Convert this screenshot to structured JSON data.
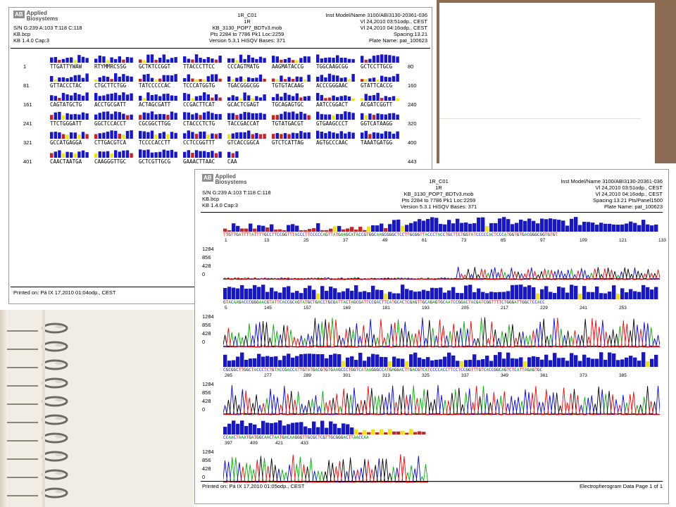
{
  "brand": {
    "logo_line1": "Applied",
    "logo_line2": "Biosystems",
    "logo_mark": "AB"
  },
  "report1": {
    "header_left": [
      "S/N G:239 A:103 T:118 C:118",
      "KB.bcp",
      "KB 1.4.0     Cap:3"
    ],
    "header_center": [
      "1R_C01",
      "1R",
      "KB_3130_POP7_BDTv3.mob",
      "Pts 2284 to 7786 Pk1 Loc:2259",
      "Version 5.3.1    HiSQV Bases: 371"
    ],
    "header_right": [
      "Inst Model/Name 3100/ABI3130-20361-036",
      "Vl 24,2010 03:51odp., CEST",
      "Vl 24,2010 04:16odp., CEST",
      "Spacing:13.21",
      "Plate Name: pat_100623"
    ],
    "rows": [
      {
        "start": "1",
        "groups": [
          "TTGATTYWAW",
          "RTYMMRCSSG",
          "GCTKTCCGGT",
          "TTACCCTTCC",
          "CCCAGTMATG",
          "AAGMATACCG",
          "TGGCAAGCGG",
          "GCTCCTTGCG"
        ],
        "end": "80"
      },
      {
        "start": "81",
        "groups": [
          "GTTACCCTAC",
          "CTGCTTCTGG",
          "TATCCCCCAC",
          "TCCCATGGTG",
          "TGACGGGCGG",
          "TGTGTACAAG",
          "ACCCGGGAAC",
          "GTATTCACCG"
        ],
        "end": "160"
      },
      {
        "start": "161",
        "groups": [
          "CAGTATGCTG",
          "ACCTGCGATT",
          "ACTAGCGATT",
          "CCGACTTCAT",
          "GCACTCGAGT",
          "TGCAGAGTGC",
          "AATCCGGACT",
          "ACGATCGGTT"
        ],
        "end": "240"
      },
      {
        "start": "241",
        "groups": [
          "TTCTGGGATT",
          "GGCTCCACCT",
          "CGCGGCTTGG",
          "CTACCCTCTG",
          "TACCGACCAT",
          "TGTATGACGT",
          "GTGAAGCCCT",
          "GGTCATAAGG"
        ],
        "end": "320"
      },
      {
        "start": "321",
        "groups": [
          "GCCATGAGGA",
          "CTTGACGTCA",
          "TCCCCACCTT",
          "CCTCCGGTTT",
          "GTCACCGGCA",
          "GTCTCATTAG",
          "AGTGCCCAAC",
          "TAAATGATGG"
        ],
        "end": "400"
      },
      {
        "start": "401",
        "groups": [
          "CAACTAATGA",
          "CAAGGGTTGC",
          "GCTCGTTGCG",
          "GAAACTTAAC",
          "CAA"
        ],
        "end": "443"
      }
    ],
    "footer": "Printed on: Pá IX 17,2010 01:04odp., CEST"
  },
  "report2": {
    "header_left": [
      "S/N G:239 A:103 T:118 C:118",
      "KB.bcp",
      "KB 1.4.0     Cap:3"
    ],
    "header_center": [
      "1R_C01",
      "1R",
      "KB_3130_POP7_BDTv3.mob",
      "Pts 2284 to 7786 Pk1 Loc:2259",
      "Version 5.3.1    HiSQV Bases: 371"
    ],
    "header_right": [
      "Inst Model/Name 3100/ABI3130-20361-036",
      "Vl 24,2010 03:51odp., CEST",
      "Vl 24,2010 04:16odp., CEST",
      "Spacing:13.21   Pts/Panel1500",
      "Plate Name: pat_100623"
    ],
    "y_ticks": [
      "1284",
      "856",
      "428",
      "0"
    ],
    "panels": [
      {
        "strip": "TTGTTGATTTTATTTTGCCTTCCGGTTTACCCTTCCCCCAGTTATGAAGCATACCGTGGCAAGCGGGCTCCTTGCGGTTACCCTACCTGCTTCTGGTATCCCCCACTCCCATGGTGTGACGGGCGGTGTGT",
        "ticks": [
          "1",
          "13",
          "25",
          "37",
          "49",
          "61",
          "73",
          "85",
          "97",
          "109",
          "121",
          "133"
        ]
      },
      {
        "strip": "GTACAAGACCCGGGAACGTATTCACCGCAGTATGCTGACCTGCGATTACTAGCGATTCCGACTTCATGCACTCGAGTTGCAGAGTGCAATCCGGACTACGATCGGTTTTCTGGGATTGGCTCCACC",
        "ticks": [
          "5",
          "145",
          "157",
          "169",
          "181",
          "193",
          "205",
          "217",
          "229",
          "241",
          "253"
        ]
      },
      {
        "strip": "CGCGGCTTGGCTACCCTCTGTACCGACCATTGTATGACGTGTGAAGCCCTGGTCATAAGGGCCATGAGGACTTGACGTCATCCCCACCTTCCTCCGGTTTGTCACCGGCAGTCTCATTAGAGTGC",
        "ticks": [
          "265",
          "277",
          "289",
          "301",
          "313",
          "325",
          "337",
          "349",
          "361",
          "373",
          "385"
        ]
      },
      {
        "strip": "CCAACTAAATGATGGCAACTAATGACAAGGGTTGCGCTCGTTGCGGGACTTAACCAA",
        "ticks": [
          "397",
          "409",
          "421",
          "433"
        ]
      }
    ],
    "footer_left": "Printed on: Pá IX 17,2010 01:05odp., CEST",
    "footer_right": "Electropherogram Data   Page 1 of 1"
  },
  "colors": {
    "A": "#00b000",
    "C": "#0000ff",
    "G": "#000000",
    "T": "#ff0000",
    "qual_high": "#1616d2",
    "qual_mid": "#f2e600",
    "qual_low": "#cc2222",
    "frame": "#8b6b52"
  }
}
